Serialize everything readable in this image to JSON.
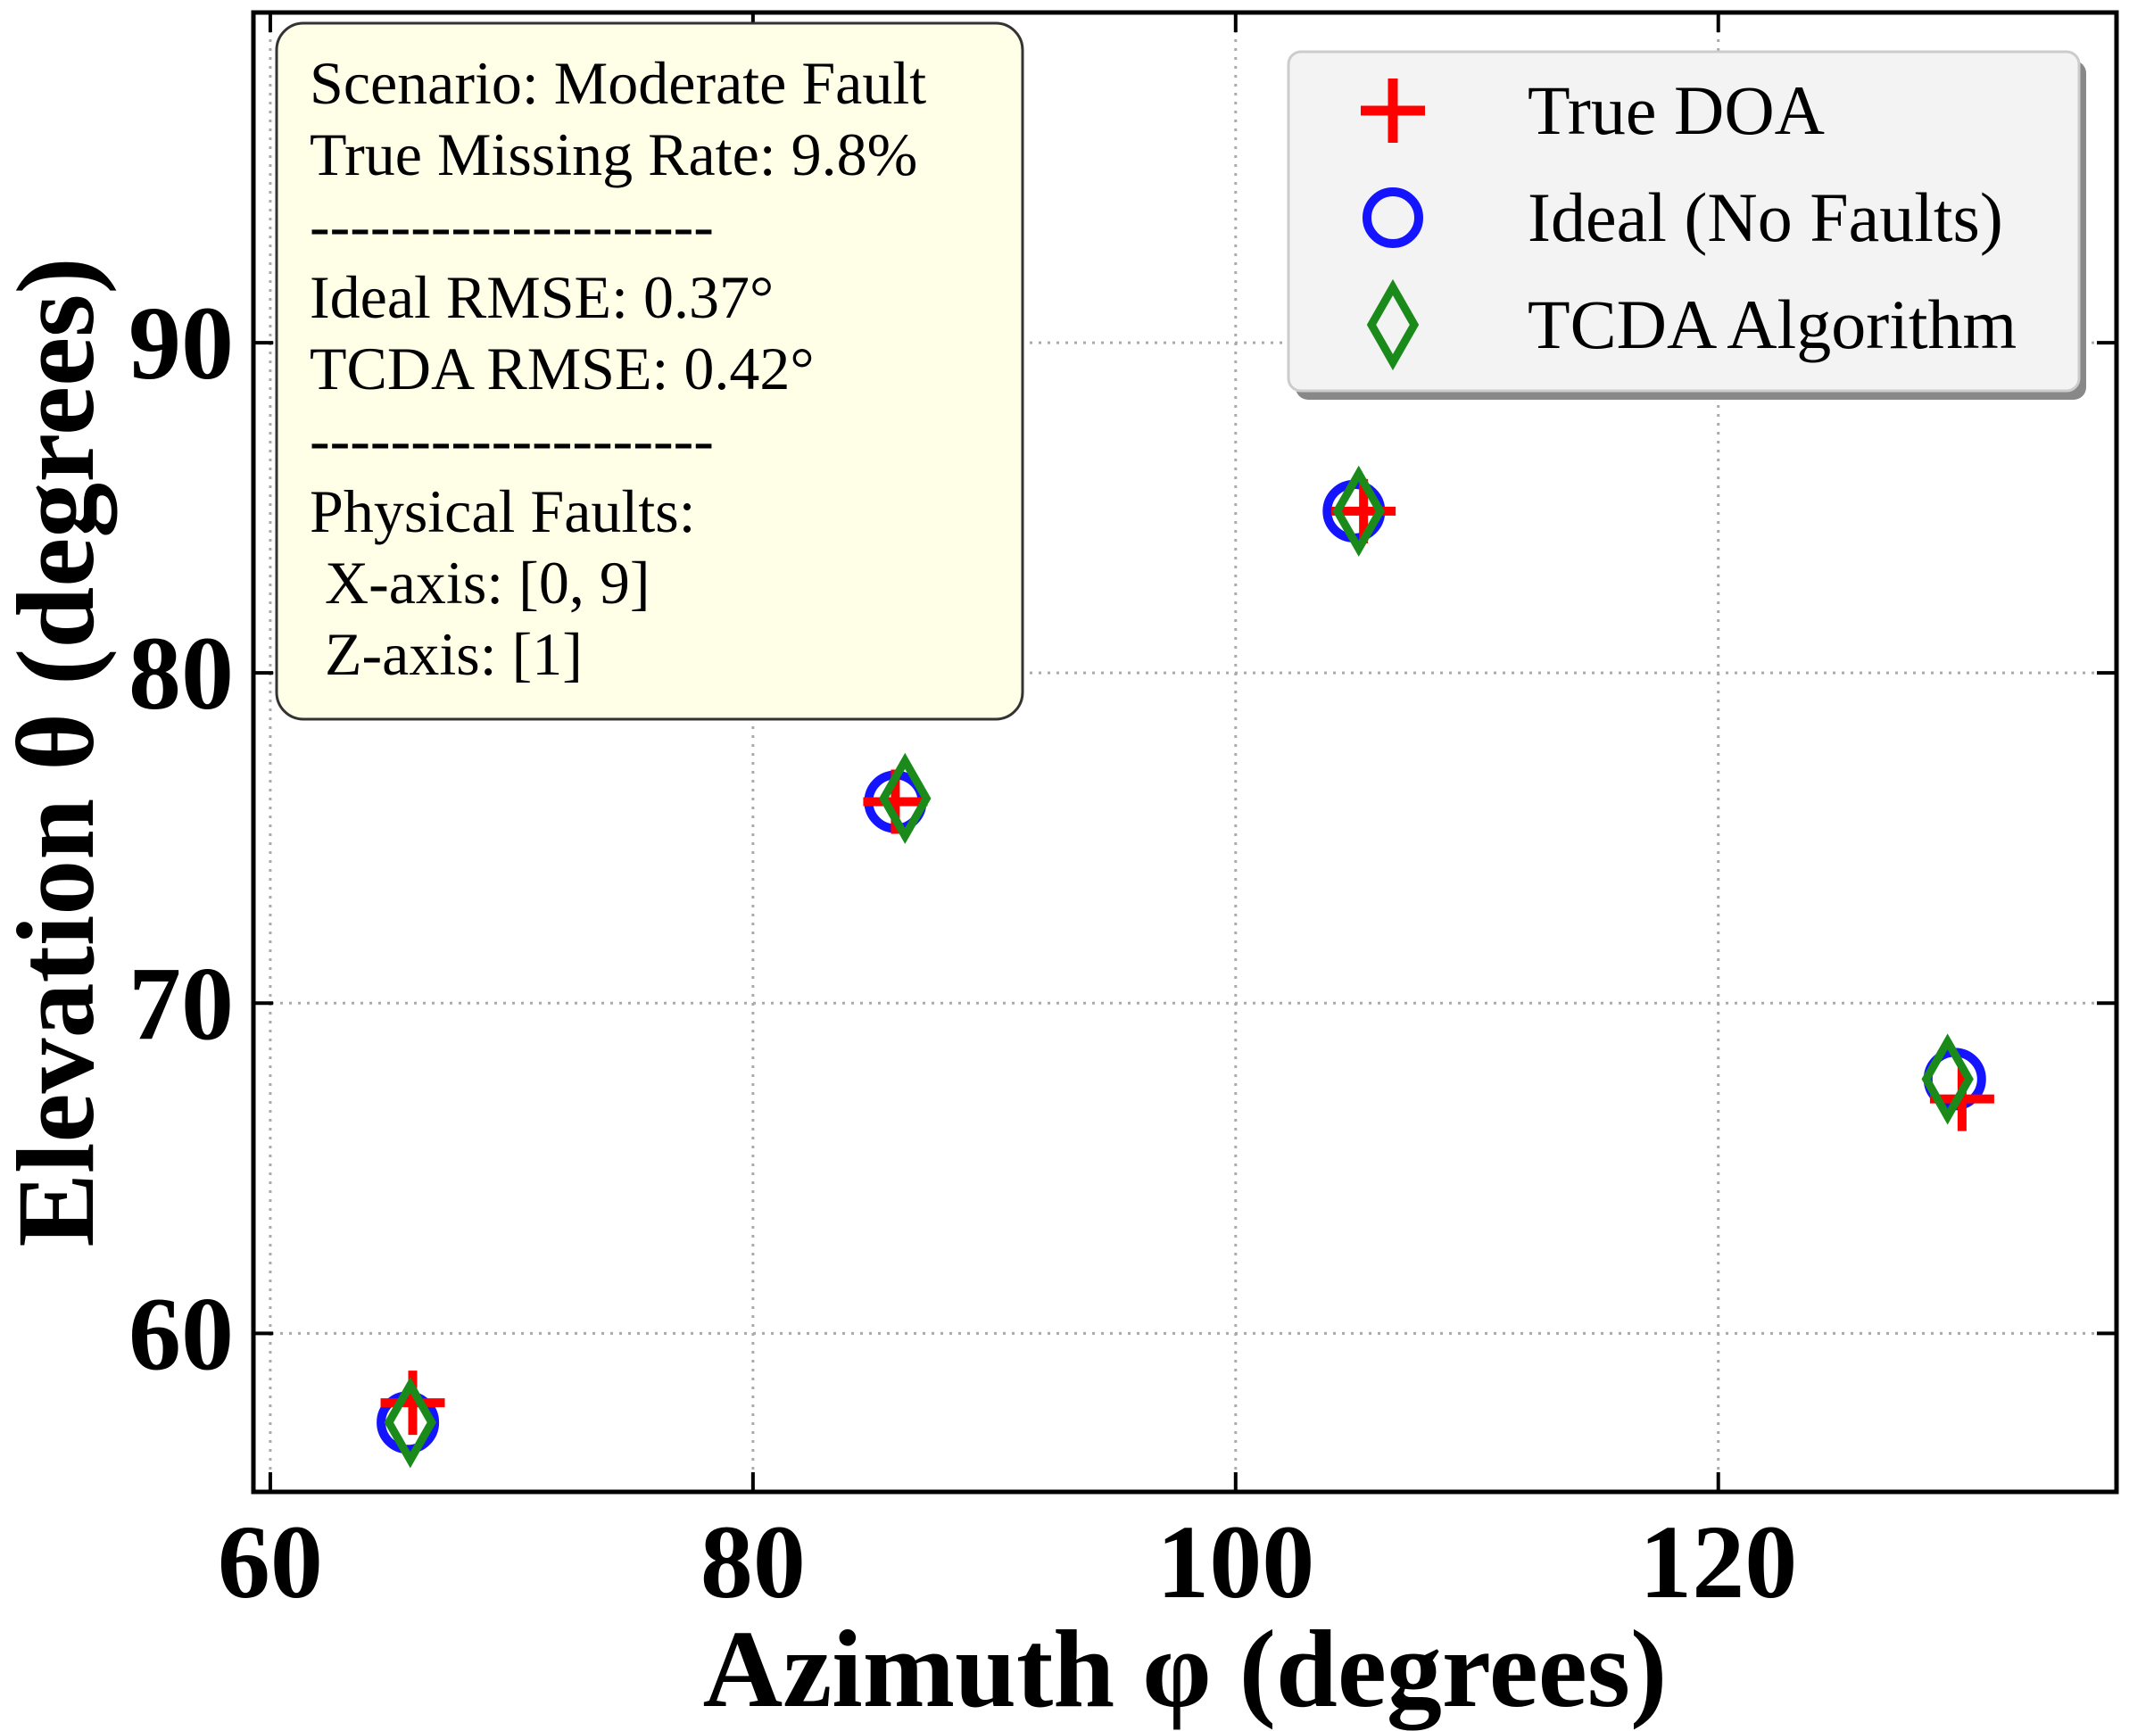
{
  "chart_data": {
    "type": "scatter",
    "xlabel": "Azimuth φ (degrees)",
    "ylabel": "Elevation θ (degrees)",
    "xlim": [
      59.3,
      136.5
    ],
    "ylim": [
      55.2,
      100.0
    ],
    "xticks": [
      60,
      80,
      100,
      120
    ],
    "yticks": [
      60,
      70,
      80,
      90
    ],
    "xtick_labels": [
      "60",
      "80",
      "100",
      "120"
    ],
    "ytick_labels": [
      "60",
      "70",
      "80",
      "90"
    ],
    "grid": true,
    "legend_position": "top-right",
    "series": [
      {
        "name": "True DOA",
        "marker": "plus",
        "color": "#ff0000",
        "points": [
          {
            "x": 65.9,
            "y": 57.9
          },
          {
            "x": 85.9,
            "y": 76.1
          },
          {
            "x": 105.3,
            "y": 84.9
          },
          {
            "x": 130.1,
            "y": 67.1
          }
        ]
      },
      {
        "name": "Ideal (No Faults)",
        "marker": "circle",
        "color": "#1414ff",
        "points": [
          {
            "x": 65.7,
            "y": 57.3
          },
          {
            "x": 85.9,
            "y": 76.1
          },
          {
            "x": 104.9,
            "y": 84.9
          },
          {
            "x": 129.8,
            "y": 67.7
          }
        ]
      },
      {
        "name": "TCDA Algorithm",
        "marker": "diamond",
        "color": "#1a8a1a",
        "points": [
          {
            "x": 65.8,
            "y": 57.3
          },
          {
            "x": 86.3,
            "y": 76.2
          },
          {
            "x": 105.1,
            "y": 84.9
          },
          {
            "x": 129.5,
            "y": 67.7
          }
        ]
      }
    ],
    "annotation": {
      "lines": [
        "Scenario: Moderate Fault",
        "True Missing Rate: 9.8%",
        "--------------------",
        "Ideal RMSE: 0.37°",
        "TCDA RMSE: 0.42°",
        "--------------------",
        "Physical Faults:",
        " X-axis: [0, 9]",
        " Z-axis: [1]"
      ],
      "background": "#ffffe8"
    }
  }
}
